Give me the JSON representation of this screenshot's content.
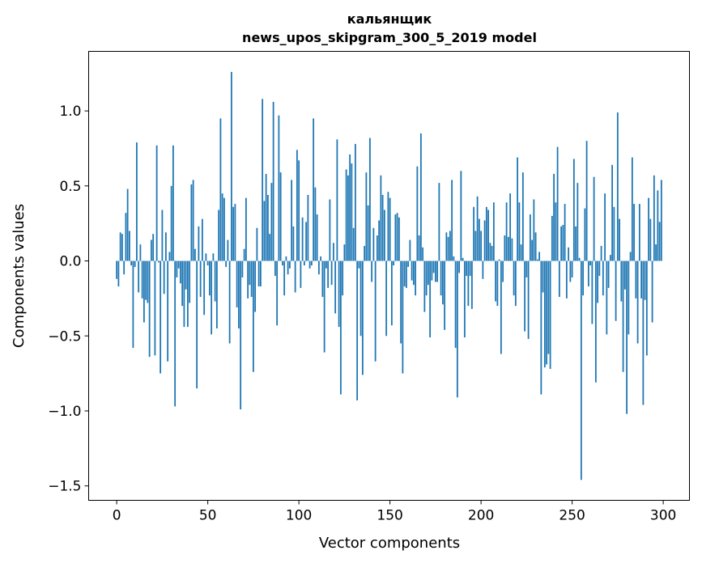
{
  "chart_data": {
    "type": "bar",
    "title_lines": [
      "кальянщик",
      "news_upos_skipgram_300_5_2019 model"
    ],
    "xlabel": "Vector components",
    "ylabel": "Components values",
    "xlim": [
      -15.4,
      314.4
    ],
    "ylim": [
      -1.596,
      1.397
    ],
    "xticks": [
      0,
      50,
      100,
      150,
      200,
      250,
      300
    ],
    "xtick_labels": [
      "0",
      "50",
      "100",
      "150",
      "200",
      "250",
      "300"
    ],
    "yticks": [
      -1.5,
      -1.0,
      -0.5,
      0.0,
      0.5,
      1.0
    ],
    "ytick_labels": [
      "−1.5",
      "−1.0",
      "−0.5",
      "0.0",
      "0.5",
      "1.0"
    ],
    "grid": false,
    "bar_color": "#1f77b4",
    "values": [
      -0.12,
      -0.17,
      0.19,
      0.18,
      -0.09,
      0.32,
      0.48,
      0.2,
      -0.03,
      -0.58,
      -0.04,
      0.79,
      -0.21,
      0.11,
      -0.25,
      -0.41,
      -0.26,
      -0.28,
      -0.64,
      0.14,
      0.18,
      -0.63,
      0.77,
      -0.01,
      -0.75,
      0.34,
      -0.22,
      0.19,
      -0.67,
      0.06,
      0.5,
      0.77,
      -0.97,
      -0.11,
      -0.05,
      -0.15,
      -0.3,
      -0.44,
      -0.19,
      -0.44,
      -0.28,
      0.51,
      0.54,
      0.08,
      -0.85,
      0.23,
      -0.24,
      0.28,
      -0.36,
      0.05,
      -0.03,
      -0.23,
      -0.49,
      0.05,
      -0.27,
      -0.45,
      0.34,
      0.95,
      0.45,
      0.42,
      -0.04,
      0.14,
      -0.55,
      1.26,
      0.36,
      0.38,
      -0.31,
      -0.45,
      -0.99,
      -0.11,
      0.08,
      0.42,
      -0.25,
      -0.16,
      -0.24,
      -0.74,
      -0.34,
      0.22,
      -0.17,
      -0.17,
      1.08,
      0.4,
      0.58,
      0.44,
      0.18,
      0.52,
      1.06,
      -0.1,
      -0.43,
      0.97,
      0.59,
      -0.03,
      -0.23,
      0.03,
      -0.09,
      -0.05,
      0.54,
      0.23,
      -0.21,
      0.74,
      0.67,
      -0.18,
      0.29,
      -0.03,
      0.26,
      0.44,
      -0.05,
      -0.03,
      0.95,
      0.49,
      0.31,
      -0.09,
      0.03,
      -0.24,
      -0.61,
      -0.05,
      -0.18,
      0.41,
      -0.16,
      0.12,
      -0.35,
      0.81,
      -0.44,
      -0.89,
      -0.23,
      0.11,
      0.61,
      0.57,
      0.71,
      0.65,
      0.22,
      0.78,
      -0.93,
      -0.05,
      -0.5,
      -0.76,
      0.1,
      0.59,
      0.37,
      0.82,
      -0.14,
      0.22,
      -0.67,
      0.17,
      0.27,
      0.57,
      0.44,
      0.34,
      -0.5,
      0.46,
      0.42,
      -0.43,
      -0.03,
      0.31,
      0.32,
      0.29,
      -0.55,
      -0.75,
      -0.17,
      -0.18,
      -0.04,
      0.14,
      -0.13,
      -0.16,
      -0.23,
      0.63,
      0.17,
      0.85,
      0.09,
      -0.34,
      -0.23,
      -0.16,
      -0.51,
      -0.13,
      -0.08,
      -0.14,
      -0.14,
      0.52,
      -0.23,
      -0.29,
      -0.46,
      0.19,
      0.16,
      0.2,
      0.54,
      0.03,
      -0.58,
      -0.91,
      -0.08,
      0.6,
      0.02,
      -0.51,
      -0.1,
      -0.3,
      -0.1,
      -0.32,
      0.36,
      0.2,
      0.43,
      0.28,
      0.2,
      -0.12,
      0.27,
      0.36,
      0.34,
      0.12,
      0.1,
      0.39,
      -0.27,
      -0.3,
      0.01,
      -0.62,
      -0.14,
      0.17,
      0.39,
      0.16,
      0.45,
      0.15,
      -0.23,
      -0.3,
      0.69,
      0.39,
      0.11,
      0.59,
      -0.47,
      -0.11,
      -0.52,
      0.31,
      0.14,
      0.41,
      0.19,
      0.01,
      0.06,
      -0.89,
      -0.21,
      -0.71,
      -0.69,
      -0.62,
      -0.72,
      0.3,
      0.58,
      0.39,
      0.76,
      -0.24,
      0.23,
      0.24,
      0.38,
      -0.25,
      0.09,
      -0.14,
      -0.11,
      0.68,
      0.23,
      0.52,
      0.02,
      -1.46,
      -0.23,
      0.35,
      0.8,
      -0.17,
      -0.03,
      -0.42,
      0.56,
      -0.81,
      -0.28,
      -0.1,
      0.1,
      -0.23,
      0.45,
      -0.49,
      -0.18,
      0.04,
      0.64,
      0.36,
      -0.4,
      0.99,
      0.28,
      -0.27,
      -0.74,
      -0.19,
      -1.02,
      -0.49,
      0.06,
      0.69,
      0.38,
      -0.25,
      -0.55,
      0.38,
      -0.25,
      -0.96,
      -0.26,
      -0.63,
      0.42,
      0.28,
      -0.41,
      0.57,
      0.11,
      0.47,
      0.26,
      0.54
    ]
  }
}
